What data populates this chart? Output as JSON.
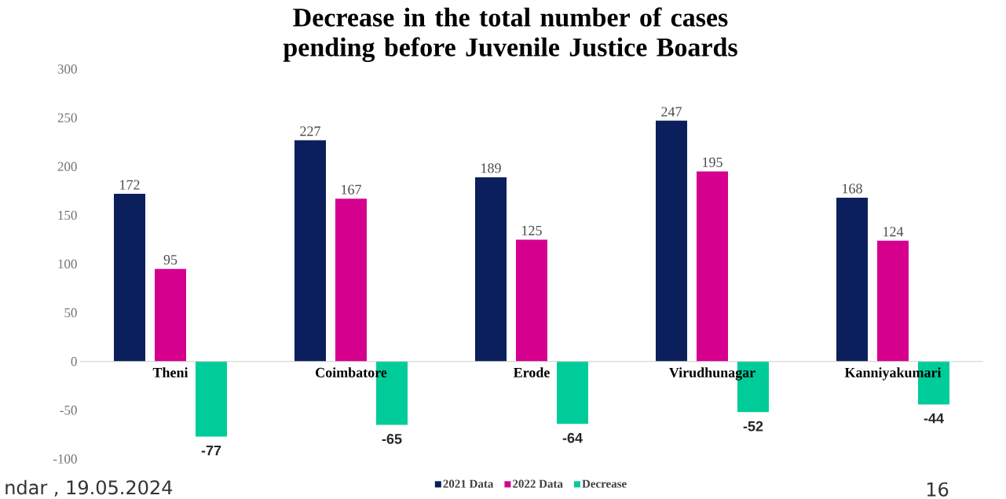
{
  "chart_data": {
    "type": "bar",
    "title": "Decrease in the total number of cases pending before Juvenile Justice Boards",
    "categories": [
      "Theni",
      "Coimbatore",
      "Erode",
      "Virudhunagar",
      "Kanniyakumari"
    ],
    "series": [
      {
        "name": "2021 Data",
        "color": "#0b1f5c",
        "values": [
          172,
          227,
          189,
          247,
          168
        ]
      },
      {
        "name": "2022 Data",
        "color": "#d6008f",
        "values": [
          95,
          167,
          125,
          195,
          124
        ]
      },
      {
        "name": "Decrease",
        "color": "#00cc99",
        "values": [
          -77,
          -65,
          -64,
          -52,
          -44
        ]
      }
    ],
    "ylim": [
      -100,
      300
    ],
    "yticks": [
      -100,
      -50,
      0,
      50,
      100,
      150,
      200,
      250,
      300
    ],
    "data_labels": true,
    "legend": "bottom",
    "annotations": [
      "ndar , 19.05.2024",
      "16"
    ]
  }
}
